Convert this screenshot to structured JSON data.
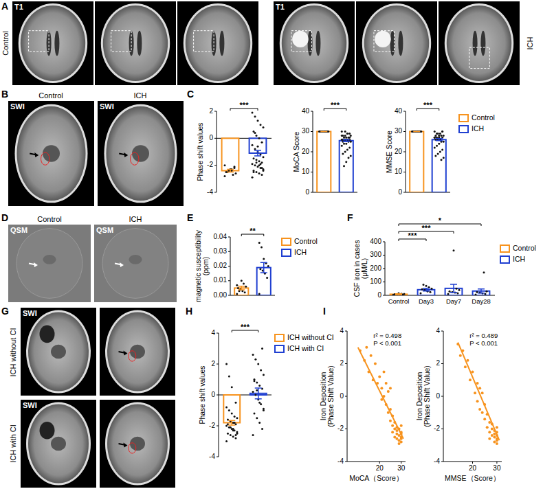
{
  "panel_labels": [
    "A",
    "B",
    "C",
    "D",
    "E",
    "F",
    "G",
    "H",
    "I"
  ],
  "images": {
    "A": {
      "modality": "T1",
      "groups": [
        "Control",
        "ICH"
      ]
    },
    "B": {
      "modality": "SWI",
      "groups": [
        "Control",
        "ICH"
      ]
    },
    "D": {
      "modality": "QSM",
      "groups": [
        "Control",
        "ICH"
      ]
    },
    "G": {
      "modality": "SWI",
      "groups": [
        "ICH without CI",
        "ICH with CI"
      ]
    }
  },
  "chart_data": [
    {
      "type": "bar",
      "y_label": [
        "Phase shift values"
      ],
      "ylim": [
        -4,
        2
      ],
      "yticks": [
        -4,
        -2,
        0,
        2
      ],
      "categories": [
        null,
        null
      ],
      "series": [
        {
          "color": "#f7931e",
          "values": [
            -2.4,
            null
          ],
          "errors": [
            0.1,
            null
          ],
          "points": [
            [
              -2.0,
              -2.2,
              -2.3,
              -2.4,
              -2.5,
              -2.6,
              -2.7,
              -2.3,
              -2.5,
              -2.8,
              -2.1,
              -2.4
            ],
            null
          ]
        },
        {
          "color": "#1f3fd1",
          "values": [
            null,
            -1.1
          ],
          "errors": [
            null,
            0.2
          ],
          "points": [
            null,
            [
              -2.9,
              -2.7,
              -2.6,
              -2.5,
              -2.4,
              -2.3,
              -2.2,
              -2.1,
              -2.0,
              -1.9,
              -1.8,
              -1.7,
              -1.6,
              -1.5,
              -1.4,
              -1.2,
              -1.0,
              -0.8,
              -0.5,
              -0.3,
              0.0,
              0.2,
              0.5,
              0.8,
              1.0,
              1.3,
              1.6,
              1.9,
              -2.2,
              -2.0,
              -1.8,
              -2.5,
              -2.4,
              -1.9,
              -0.6,
              0.4
            ]
          ]
        }
      ],
      "significance": [
        {
          "label": "***",
          "between": [
            0,
            1
          ]
        }
      ]
    },
    {
      "type": "bar",
      "y_label": [
        "MoCA Score"
      ],
      "ylim": [
        0,
        40
      ],
      "yticks": [
        0,
        10,
        20,
        30,
        40
      ],
      "categories": [
        null,
        null
      ],
      "series": [
        {
          "color": "#f7931e",
          "values": [
            30,
            null
          ],
          "errors": [
            0,
            null
          ],
          "points": [
            [
              30,
              30,
              30,
              30,
              30,
              30,
              30,
              30,
              30,
              30,
              30,
              30
            ],
            null
          ]
        },
        {
          "color": "#1f3fd1",
          "values": [
            null,
            25.5
          ],
          "errors": [
            null,
            0.5
          ],
          "points": [
            null,
            [
              30,
              29,
              29,
              28,
              28,
              28,
              27,
              27,
              27,
              26,
              26,
              26,
              26,
              25,
              25,
              25,
              24,
              24,
              23,
              22,
              21,
              20,
              19,
              18,
              17,
              15,
              13,
              28,
              27,
              29,
              30,
              26
            ]
          ]
        }
      ],
      "significance": [
        {
          "label": "***",
          "between": [
            0,
            1
          ]
        }
      ]
    },
    {
      "type": "bar",
      "y_label": [
        "MMSE Score"
      ],
      "ylim": [
        0,
        40
      ],
      "yticks": [
        0,
        10,
        20,
        30,
        40
      ],
      "categories": [
        null,
        null
      ],
      "legend": "right",
      "series": [
        {
          "name": "Control",
          "color": "#f7931e",
          "values": [
            30,
            null
          ],
          "errors": [
            0,
            null
          ],
          "points": [
            [
              30,
              30,
              30,
              30,
              30,
              30,
              30,
              30,
              30,
              30,
              30,
              30
            ],
            null
          ]
        },
        {
          "name": "ICH",
          "color": "#1f3fd1",
          "values": [
            null,
            26
          ],
          "errors": [
            null,
            0.5
          ],
          "points": [
            null,
            [
              30,
              30,
              29,
              29,
              28,
              28,
              28,
              27,
              27,
              27,
              27,
              26,
              26,
              26,
              25,
              25,
              24,
              23,
              22,
              21,
              20,
              19,
              18,
              17,
              16,
              28,
              29,
              27,
              30,
              26
            ]
          ]
        }
      ],
      "significance": [
        {
          "label": "***",
          "between": [
            0,
            1
          ]
        }
      ]
    },
    {
      "type": "bar",
      "y_label": [
        "magnetic susceptibility",
        "(ppm)"
      ],
      "ylim": [
        0,
        0.04
      ],
      "yticks": [
        {
          "value": 0,
          "label": "0.00"
        },
        {
          "value": 0.01,
          "label": "0.01"
        },
        {
          "value": 0.02,
          "label": "0.02"
        },
        {
          "value": 0.03,
          "label": "0.03"
        },
        {
          "value": 0.04,
          "label": "0.04"
        }
      ],
      "categories": [
        null,
        null
      ],
      "legend": "right",
      "series": [
        {
          "name": "Control",
          "color": "#f7931e",
          "values": [
            0.005,
            null
          ],
          "errors": [
            0.0012,
            null
          ],
          "points": [
            [
              0.001,
              0.002,
              0.003,
              0.004,
              0.005,
              0.006,
              0.008,
              0.01,
              0.003,
              0.007
            ],
            null
          ]
        },
        {
          "name": "ICH",
          "color": "#1f3fd1",
          "values": [
            null,
            0.019
          ],
          "errors": [
            null,
            0.0035
          ],
          "points": [
            null,
            [
              0.001,
              0.012,
              0.015,
              0.017,
              0.018,
              0.02,
              0.022,
              0.025,
              0.033,
              0.036
            ]
          ]
        }
      ],
      "significance": [
        {
          "label": "**",
          "between": [
            0,
            1
          ]
        }
      ]
    },
    {
      "type": "bar",
      "y_label": [
        "CSF iron in cases",
        "(μM/L)"
      ],
      "ylim": [
        0,
        400
      ],
      "yticks": [
        0,
        100,
        200,
        300,
        400
      ],
      "categories": [
        "Control",
        "Day3",
        "Day7",
        "Day28"
      ],
      "legend": "right",
      "series": [
        {
          "name": "Control",
          "color": "#f7931e",
          "values": [
            8,
            null,
            null,
            null
          ],
          "errors": [
            3,
            null,
            null,
            null
          ],
          "points": [
            [
              2,
              4,
              5,
              6,
              8,
              10,
              12,
              15
            ],
            null,
            null,
            null
          ]
        },
        {
          "name": "ICH",
          "color": "#1f3fd1",
          "values": [
            null,
            42,
            52,
            32
          ],
          "errors": [
            null,
            10,
            30,
            15
          ],
          "points": [
            null,
            [
              15,
              25,
              30,
              40,
              45,
              50,
              60,
              70,
              80
            ],
            [
              10,
              15,
              20,
              25,
              30,
              40,
              50,
              335
            ],
            [
              5,
              10,
              15,
              20,
              25,
              30,
              170
            ]
          ]
        }
      ],
      "significance": [
        {
          "label": "***",
          "between": [
            0,
            1
          ]
        },
        {
          "label": "***",
          "between": [
            0,
            2
          ]
        },
        {
          "label": "*",
          "between": [
            0,
            3
          ]
        }
      ]
    },
    {
      "type": "bar",
      "y_label": [
        "Phase shift values"
      ],
      "ylim": [
        -4,
        4
      ],
      "yticks": [
        -4,
        -2,
        0,
        2,
        4
      ],
      "categories": [
        null,
        null
      ],
      "legend": "right",
      "series": [
        {
          "name": "ICH without CI",
          "color": "#f7931e",
          "values": [
            -1.8,
            null
          ],
          "errors": [
            0.15,
            null
          ],
          "points": [
            [
              -3.0,
              -2.8,
              -2.7,
              -2.6,
              -2.5,
              -2.4,
              -2.3,
              -2.2,
              -2.1,
              -2.0,
              -1.9,
              -1.8,
              -1.7,
              -1.6,
              -1.5,
              -1.4,
              -1.2,
              -1.0,
              -0.8,
              -0.5,
              -2.3,
              -2.1,
              -1.9,
              -2.5,
              -1.8,
              0.5,
              1.2,
              2.0,
              -2.6,
              -2.2
            ],
            null
          ]
        },
        {
          "name": "ICH with CI",
          "color": "#1f3fd1",
          "values": [
            null,
            0.1
          ],
          "errors": [
            null,
            0.35
          ],
          "points": [
            null,
            [
              -2.6,
              -2.2,
              -1.8,
              -1.5,
              -1.2,
              -0.9,
              -0.6,
              -0.3,
              0.0,
              0.2,
              0.4,
              0.6,
              0.8,
              1.0,
              1.3,
              1.6,
              2.0,
              2.3,
              2.6,
              3.0,
              -0.5,
              0.3,
              0.9,
              -1.0
            ]
          ]
        }
      ],
      "significance": [
        {
          "label": "***",
          "between": [
            0,
            1
          ]
        }
      ]
    },
    {
      "type": "scatter",
      "x_label": "MoCA（Score）",
      "y_label": [
        "Iron Deposition",
        "(Phase Shift Value)"
      ],
      "xlim": [
        5,
        32
      ],
      "xticks": [
        20,
        30
      ],
      "ylim": [
        -4,
        4
      ],
      "yticks": [
        -4,
        -2,
        0,
        2,
        4
      ],
      "color": "#f7931e",
      "annotations": [
        "r² = 0.498",
        "P < 0.001"
      ],
      "x": [
        11,
        13,
        14,
        15,
        16,
        17,
        18,
        19,
        20,
        21,
        21,
        22,
        22,
        23,
        23,
        24,
        24,
        25,
        25,
        25,
        26,
        26,
        26,
        27,
        27,
        27,
        28,
        28,
        28,
        28,
        29,
        29,
        29,
        29,
        30,
        30,
        30,
        30,
        30,
        30
      ],
      "y": [
        2.8,
        2.2,
        3.0,
        1.5,
        2.5,
        1.0,
        2.0,
        0.8,
        1.2,
        -0.2,
        0.5,
        0.0,
        1.5,
        -0.5,
        0.8,
        -1.0,
        0.3,
        -1.5,
        -0.8,
        0.5,
        -1.8,
        -2.2,
        -1.2,
        -2.0,
        -2.5,
        -1.6,
        -2.3,
        -2.6,
        -1.9,
        -2.1,
        -2.4,
        -2.7,
        -2.0,
        -2.9,
        -2.2,
        -2.5,
        -2.8,
        -1.8,
        -2.6,
        -2.3
      ],
      "fit": {
        "x": [
          10,
          31
        ],
        "y": [
          3.0,
          -2.6
        ]
      }
    },
    {
      "type": "scatter",
      "x_label": "MMSE（Score）",
      "y_label": [
        "Iron Deposition",
        "(Phase Shift Value)"
      ],
      "xlim": [
        8,
        32
      ],
      "xticks": [
        20,
        30
      ],
      "ylim": [
        -4,
        4
      ],
      "yticks": [
        -4,
        -2,
        0,
        2,
        4
      ],
      "color": "#f7931e",
      "annotations": [
        "r² = 0.489",
        "P < 0.001"
      ],
      "x": [
        14,
        15,
        16,
        17,
        18,
        19,
        20,
        21,
        22,
        22,
        23,
        23,
        24,
        24,
        25,
        25,
        26,
        26,
        27,
        27,
        27,
        28,
        28,
        28,
        29,
        29,
        29,
        29,
        30,
        30,
        30,
        30,
        30,
        30
      ],
      "y": [
        3.2,
        2.5,
        2.8,
        1.8,
        2.2,
        1.0,
        1.5,
        0.2,
        0.8,
        -0.3,
        0.5,
        -0.8,
        -1.0,
        0.2,
        -1.4,
        -0.5,
        -1.9,
        -1.1,
        -2.2,
        -1.6,
        -2.6,
        -2.0,
        -2.4,
        -1.7,
        -2.5,
        -2.8,
        -2.1,
        -2.3,
        -2.6,
        -2.2,
        -2.9,
        -1.9,
        -2.4,
        -2.7
      ],
      "fit": {
        "x": [
          14,
          31
        ],
        "y": [
          3.3,
          -2.7
        ]
      }
    }
  ]
}
